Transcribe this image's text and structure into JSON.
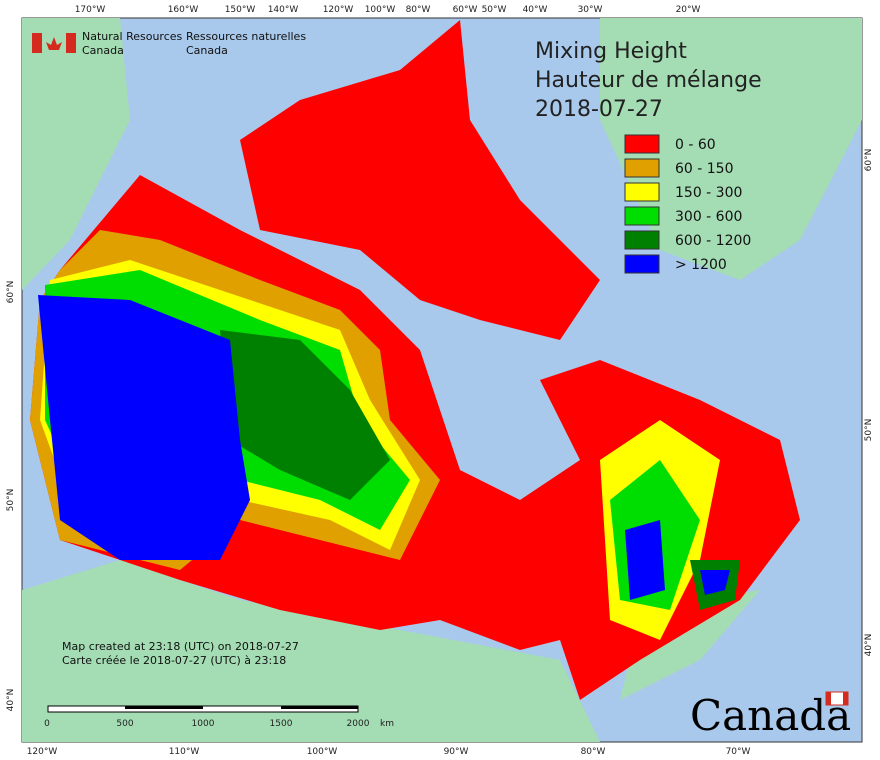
{
  "header": {
    "agency_en": [
      "Natural Resources",
      "Canada"
    ],
    "agency_fr": [
      "Ressources naturelles",
      "Canada"
    ]
  },
  "title": [
    "Mixing Height",
    "Hauteur de mélange",
    "2018-07-27"
  ],
  "legend": [
    {
      "label": "0 - 60",
      "color": "#ff0000"
    },
    {
      "label": "60 - 150",
      "color": "#e0a000"
    },
    {
      "label": "150 - 300",
      "color": "#ffff00"
    },
    {
      "label": "300 - 600",
      "color": "#00dd00"
    },
    {
      "label": "600 - 1200",
      "color": "#008000"
    },
    {
      "label": "> 1200",
      "color": "#0000ff"
    }
  ],
  "graticule": {
    "top": [
      "170°W",
      "160°W",
      "150°W",
      "140°W",
      "120°W",
      "100°W",
      "80°W",
      "60°W",
      "50°W",
      "40°W",
      "30°W",
      "20°W"
    ],
    "bottom": [
      "120°W",
      "110°W",
      "100°W",
      "90°W",
      "80°W",
      "70°W"
    ],
    "left": [
      "60°N",
      "50°N",
      "40°N"
    ],
    "right": [
      "60°N",
      "50°N",
      "40°N"
    ]
  },
  "notes": [
    "Map created at 23:18 (UTC) on 2018-07-27",
    "Carte créée le 2018-07-27 (UTC) à 23:18"
  ],
  "scale_bar": {
    "labels": [
      "0",
      "500",
      "1000",
      "1500",
      "2000"
    ],
    "unit": "km"
  },
  "wordmark": "Canada"
}
